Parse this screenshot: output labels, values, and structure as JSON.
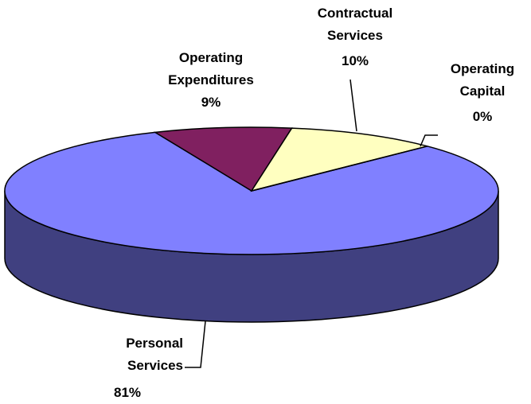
{
  "chart_data": {
    "type": "pie3d",
    "categories": [
      "Personal Services",
      "Operating Expenditures",
      "Contractual Services",
      "Operating Capital"
    ],
    "values": [
      81,
      9,
      10,
      0
    ],
    "value_labels": [
      "81%",
      "9%",
      "10%",
      "0%"
    ],
    "colors": [
      "#8080ff",
      "#802060",
      "#ffffc0",
      "#a0e0e0"
    ]
  }
}
